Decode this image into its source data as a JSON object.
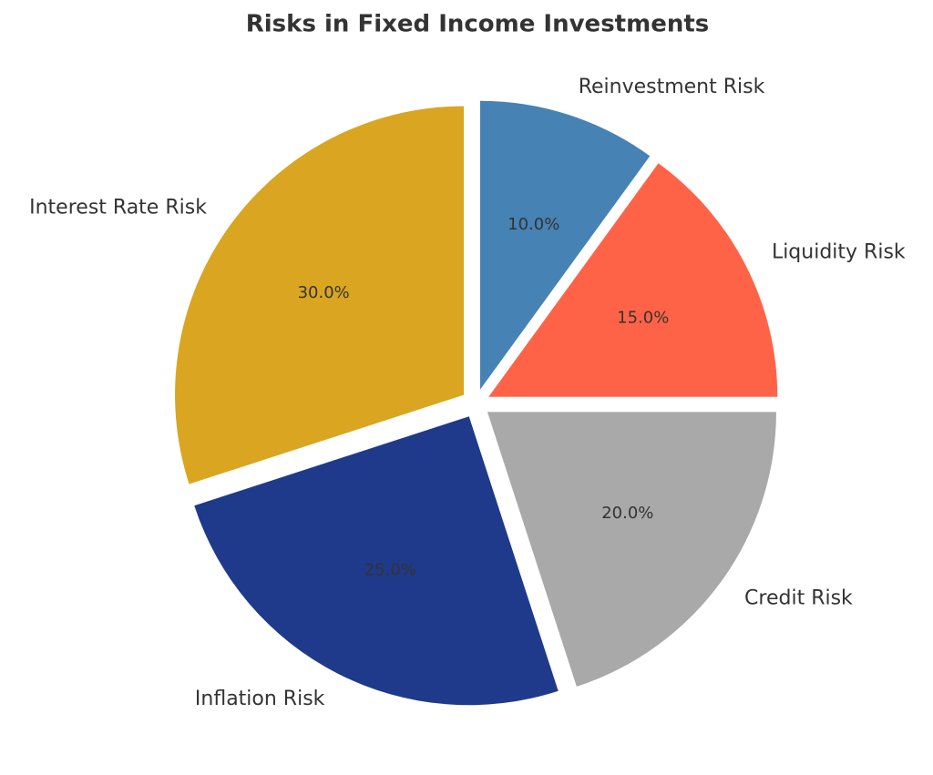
{
  "chart_data": {
    "type": "pie",
    "title": "Risks in Fixed Income Investments",
    "categories": [
      "Reinvestment Risk",
      "Liquidity Risk",
      "Credit Risk",
      "Inflation Risk",
      "Interest Rate Risk"
    ],
    "values": [
      10,
      15,
      20,
      25,
      30
    ],
    "value_labels": [
      "10.0%",
      "15.0%",
      "20.0%",
      "25.0%",
      "30.0%"
    ],
    "colors": [
      "#4682b4",
      "#ff6347",
      "#a9a9a9",
      "#1f3a8a",
      "#daa520"
    ]
  }
}
